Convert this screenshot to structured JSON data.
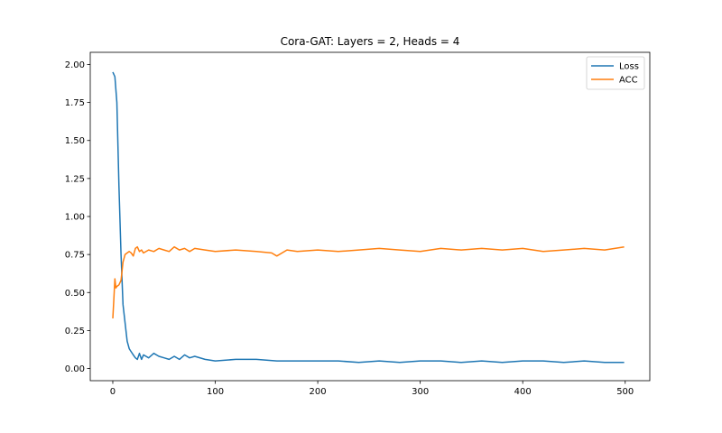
{
  "chart_data": {
    "type": "line",
    "title": "Cora-GAT: Layers = 2, Heads = 4",
    "xlabel": "",
    "ylabel": "",
    "xlim": [
      -22,
      524
    ],
    "ylim": [
      -0.08,
      2.08
    ],
    "xticks": [
      0,
      100,
      200,
      300,
      400,
      500
    ],
    "yticks": [
      0.0,
      0.25,
      0.5,
      0.75,
      1.0,
      1.25,
      1.5,
      1.75,
      2.0
    ],
    "xtick_labels": [
      "0",
      "100",
      "200",
      "300",
      "400",
      "500"
    ],
    "ytick_labels": [
      "0.00",
      "0.25",
      "0.50",
      "0.75",
      "1.00",
      "1.25",
      "1.50",
      "1.75",
      "2.00"
    ],
    "grid": false,
    "legend_position": "top-right",
    "series": [
      {
        "name": "Loss",
        "color": "#1f77b4",
        "x": [
          0,
          2,
          4,
          6,
          8,
          10,
          12,
          14,
          16,
          18,
          20,
          22,
          24,
          26,
          28,
          30,
          35,
          40,
          45,
          50,
          55,
          60,
          65,
          70,
          75,
          80,
          90,
          100,
          120,
          140,
          160,
          180,
          200,
          220,
          240,
          260,
          280,
          300,
          320,
          340,
          360,
          380,
          400,
          420,
          440,
          460,
          480,
          499
        ],
        "y": [
          1.95,
          1.92,
          1.75,
          1.2,
          0.75,
          0.42,
          0.3,
          0.18,
          0.13,
          0.11,
          0.09,
          0.07,
          0.06,
          0.1,
          0.06,
          0.09,
          0.07,
          0.1,
          0.08,
          0.07,
          0.06,
          0.08,
          0.06,
          0.09,
          0.07,
          0.08,
          0.06,
          0.05,
          0.06,
          0.06,
          0.05,
          0.05,
          0.05,
          0.05,
          0.04,
          0.05,
          0.04,
          0.05,
          0.05,
          0.04,
          0.05,
          0.04,
          0.05,
          0.05,
          0.04,
          0.05,
          0.04,
          0.04
        ]
      },
      {
        "name": "ACC",
        "color": "#ff7f0e",
        "x": [
          0,
          1,
          2,
          3,
          4,
          6,
          8,
          10,
          12,
          14,
          16,
          18,
          20,
          22,
          24,
          26,
          28,
          30,
          35,
          40,
          45,
          50,
          55,
          60,
          65,
          70,
          75,
          80,
          90,
          100,
          120,
          140,
          155,
          160,
          170,
          180,
          200,
          220,
          240,
          260,
          280,
          300,
          320,
          340,
          360,
          380,
          400,
          420,
          440,
          460,
          480,
          499
        ],
        "y": [
          0.33,
          0.45,
          0.59,
          0.53,
          0.54,
          0.55,
          0.58,
          0.7,
          0.75,
          0.76,
          0.77,
          0.76,
          0.74,
          0.79,
          0.8,
          0.77,
          0.78,
          0.76,
          0.78,
          0.77,
          0.79,
          0.78,
          0.77,
          0.8,
          0.78,
          0.79,
          0.77,
          0.79,
          0.78,
          0.77,
          0.78,
          0.77,
          0.76,
          0.74,
          0.78,
          0.77,
          0.78,
          0.77,
          0.78,
          0.79,
          0.78,
          0.77,
          0.79,
          0.78,
          0.79,
          0.78,
          0.79,
          0.77,
          0.78,
          0.79,
          0.78,
          0.8
        ]
      }
    ]
  }
}
